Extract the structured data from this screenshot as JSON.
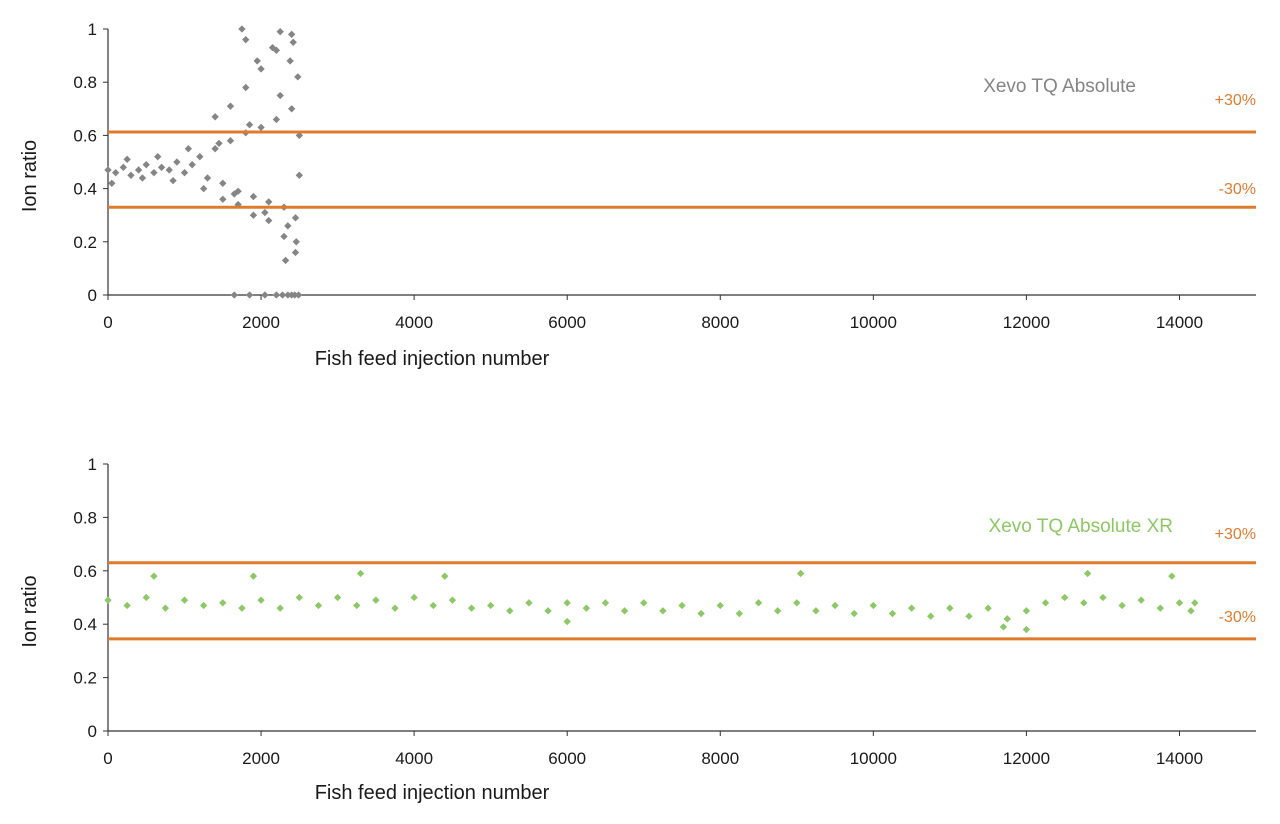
{
  "colors": {
    "threshold": "#e07b2e",
    "series_top": "#858585",
    "series_bottom": "#8cc965",
    "axis": "#333333"
  },
  "chart_data": [
    {
      "type": "scatter",
      "xlabel": "Fish feed injection number",
      "ylabel": "Ion ratio",
      "xlim": [
        0,
        15000
      ],
      "ylim": [
        0,
        1
      ],
      "x_ticks": [
        0,
        2000,
        4000,
        6000,
        8000,
        10000,
        12000,
        14000
      ],
      "y_ticks": [
        0,
        0.2,
        0.4,
        0.6,
        0.8,
        1
      ],
      "x_tick_labels": [
        "0",
        "2000",
        "4000",
        "6000",
        "8000",
        "10000",
        "12000",
        "14000"
      ],
      "y_tick_labels": [
        "0",
        "0.2",
        "0.4",
        "0.6",
        "0.8",
        "1"
      ],
      "series": [
        {
          "name": "Xevo TQ Absolute",
          "color": "#858585",
          "x": [
            0,
            100,
            200,
            300,
            400,
            500,
            600,
            700,
            800,
            900,
            1000,
            1100,
            1200,
            1300,
            1400,
            1500,
            1600,
            1700,
            1800,
            1900,
            2000,
            2100,
            2200,
            2300,
            2400,
            2450,
            2500,
            50,
            250,
            450,
            650,
            850,
            1050,
            1250,
            1450,
            1650,
            1850,
            2050,
            2250,
            2350,
            2480,
            1400,
            1500,
            1600,
            1700,
            1800,
            1900,
            2000,
            2100,
            2200,
            2300,
            2400,
            2450,
            2500,
            1750,
            1800,
            1950,
            2150,
            2250,
            2320,
            2380,
            2420,
            2460,
            1650,
            1850,
            2050,
            2200,
            2280,
            2350,
            2400,
            2440,
            2490
          ],
          "y": [
            0.47,
            0.46,
            0.48,
            0.45,
            0.47,
            0.49,
            0.46,
            0.48,
            0.47,
            0.5,
            0.46,
            0.49,
            0.52,
            0.44,
            0.55,
            0.42,
            0.58,
            0.39,
            0.61,
            0.37,
            0.63,
            0.35,
            0.66,
            0.33,
            0.7,
            0.29,
            0.45,
            0.42,
            0.51,
            0.44,
            0.52,
            0.43,
            0.55,
            0.4,
            0.57,
            0.38,
            0.64,
            0.31,
            0.75,
            0.26,
            0.82,
            0.67,
            0.36,
            0.71,
            0.34,
            0.78,
            0.3,
            0.85,
            0.28,
            0.92,
            0.22,
            0.98,
            0.16,
            0.6,
            1.0,
            0.96,
            0.88,
            0.93,
            0.99,
            0.13,
            0.88,
            0.95,
            0.2,
            0,
            0,
            0,
            0,
            0,
            0,
            0,
            0,
            0
          ]
        }
      ],
      "thresholds": [
        {
          "label": "+30%",
          "y": 0.613
        },
        {
          "label": "-30%",
          "y": 0.33
        }
      ]
    },
    {
      "type": "scatter",
      "xlabel": "Fish feed injection number",
      "ylabel": "Ion ratio",
      "xlim": [
        0,
        15000
      ],
      "ylim": [
        0,
        1
      ],
      "x_ticks": [
        0,
        2000,
        4000,
        6000,
        8000,
        10000,
        12000,
        14000
      ],
      "y_ticks": [
        0,
        0.2,
        0.4,
        0.6,
        0.8,
        1
      ],
      "x_tick_labels": [
        "0",
        "2000",
        "4000",
        "6000",
        "8000",
        "10000",
        "12000",
        "14000"
      ],
      "y_tick_labels": [
        "0",
        "0.2",
        "0.4",
        "0.6",
        "0.8",
        "1"
      ],
      "series": [
        {
          "name": "Xevo TQ Absolute XR",
          "color": "#8cc965",
          "x": [
            0,
            500,
            1000,
            1500,
            2000,
            2500,
            3000,
            3500,
            4000,
            4500,
            5000,
            5500,
            6000,
            6500,
            7000,
            7500,
            8000,
            8500,
            9000,
            9500,
            10000,
            10500,
            11000,
            11500,
            12000,
            12500,
            13000,
            13500,
            14000,
            14200,
            250,
            750,
            1250,
            1750,
            2250,
            2750,
            3250,
            3750,
            4250,
            4750,
            5250,
            5750,
            6250,
            6750,
            7250,
            7750,
            8250,
            8750,
            9250,
            9750,
            10250,
            10750,
            11250,
            11750,
            12250,
            12750,
            13250,
            13750,
            14150,
            600,
            1900,
            3300,
            4400,
            9050,
            12800,
            13900,
            6000,
            11700,
            12000
          ],
          "y": [
            0.49,
            0.5,
            0.49,
            0.48,
            0.49,
            0.5,
            0.5,
            0.49,
            0.5,
            0.49,
            0.47,
            0.48,
            0.48,
            0.48,
            0.48,
            0.47,
            0.47,
            0.48,
            0.48,
            0.47,
            0.47,
            0.46,
            0.46,
            0.46,
            0.45,
            0.5,
            0.5,
            0.49,
            0.48,
            0.48,
            0.47,
            0.46,
            0.47,
            0.46,
            0.46,
            0.47,
            0.47,
            0.46,
            0.47,
            0.46,
            0.45,
            0.45,
            0.46,
            0.45,
            0.45,
            0.44,
            0.44,
            0.45,
            0.45,
            0.44,
            0.44,
            0.43,
            0.43,
            0.42,
            0.48,
            0.48,
            0.47,
            0.46,
            0.45,
            0.58,
            0.58,
            0.59,
            0.58,
            0.59,
            0.59,
            0.58,
            0.41,
            0.39,
            0.38
          ]
        }
      ],
      "thresholds": [
        {
          "label": "+30%",
          "y": 0.63
        },
        {
          "label": "-30%",
          "y": 0.345
        }
      ]
    }
  ]
}
